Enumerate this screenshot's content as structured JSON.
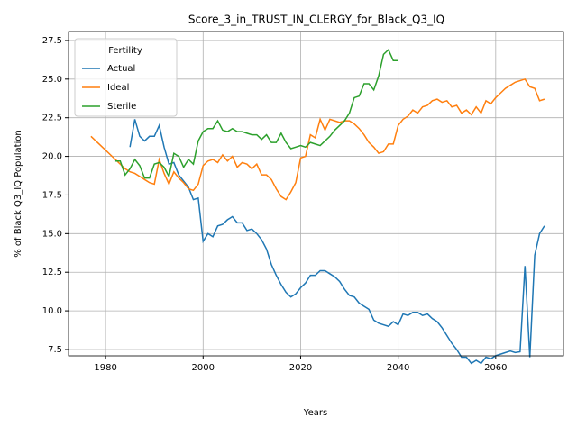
{
  "chart_data": {
    "type": "line",
    "title": "Score_3_in_TRUST_IN_CLERGY_for_Black_Q3_IQ",
    "x_label": "Years",
    "y_label": "% of Black Q3_IQ Population",
    "legend_title": "Fertility",
    "legend": "upper left",
    "grid": true,
    "xlim": [
      1972.4,
      2073.9
    ],
    "ylim": [
      7.09,
      28.08
    ],
    "xticks": [
      1980,
      2000,
      2020,
      2040,
      2060
    ],
    "yticks": [
      7.5,
      {
        "value": 10,
        "label": "10.0"
      },
      12.5,
      {
        "value": 15,
        "label": "15.0"
      },
      17.5,
      {
        "value": 20,
        "label": "20.0"
      },
      22.5,
      {
        "value": 25,
        "label": "25.0"
      },
      27.5
    ],
    "x": [
      1977,
      1978,
      1979,
      1980,
      1981,
      1982,
      1983,
      1984,
      1985,
      1986,
      1987,
      1988,
      1989,
      1990,
      1991,
      1992,
      1993,
      1994,
      1995,
      1996,
      1997,
      1998,
      1999,
      2000,
      2001,
      2002,
      2003,
      2004,
      2005,
      2006,
      2007,
      2008,
      2009,
      2010,
      2011,
      2012,
      2013,
      2014,
      2015,
      2016,
      2017,
      2018,
      2019,
      2020,
      2021,
      2022,
      2023,
      2024,
      2025,
      2026,
      2027,
      2028,
      2029,
      2030,
      2031,
      2032,
      2033,
      2034,
      2035,
      2036,
      2037,
      2038,
      2039,
      2040,
      2041,
      2042,
      2043,
      2044,
      2045,
      2046,
      2047,
      2048,
      2049,
      2050,
      2051,
      2052,
      2053,
      2054,
      2055,
      2056,
      2057,
      2058,
      2059,
      2060,
      2061,
      2062,
      2063,
      2064,
      2065,
      2066,
      2067,
      2068,
      2069,
      2070
    ],
    "series": [
      {
        "name": "Actual",
        "color": "#1f77b4",
        "values": [
          null,
          null,
          null,
          null,
          null,
          null,
          null,
          null,
          20.6,
          22.4,
          21.3,
          21.0,
          21.3,
          21.3,
          22.0,
          20.6,
          19.5,
          19.6,
          18.8,
          18.4,
          18.0,
          17.2,
          17.3,
          14.5,
          15.0,
          14.8,
          15.5,
          15.6,
          15.9,
          16.1,
          15.7,
          15.7,
          15.2,
          15.3,
          15.0,
          14.6,
          14.0,
          13.0,
          12.3,
          11.7,
          11.2,
          10.9,
          11.1,
          11.5,
          11.8,
          12.3,
          12.3,
          12.6,
          12.6,
          12.4,
          12.2,
          11.9,
          11.4,
          11.0,
          10.9,
          10.5,
          10.3,
          10.1,
          9.4,
          9.2,
          9.1,
          9.0,
          9.3,
          9.1,
          9.8,
          9.7,
          9.9,
          9.9,
          9.7,
          9.8,
          9.5,
          9.3,
          8.9,
          8.4,
          7.9,
          7.5,
          7.0,
          7.0,
          6.6,
          6.8,
          6.6,
          7.0,
          6.9,
          7.1,
          7.2,
          7.3,
          7.4,
          7.3,
          7.35,
          12.9,
          7.0,
          13.6,
          15.0,
          15.5
        ]
      },
      {
        "name": "Ideal",
        "color": "#ff7f0e",
        "values": [
          21.3,
          21.0,
          20.7,
          20.4,
          20.1,
          19.8,
          19.5,
          19.2,
          19.0,
          18.9,
          18.7,
          18.5,
          18.3,
          18.2,
          19.8,
          18.9,
          18.2,
          19.0,
          18.6,
          18.3,
          17.9,
          17.8,
          18.2,
          19.4,
          19.7,
          19.8,
          19.6,
          20.1,
          19.7,
          20.0,
          19.3,
          19.6,
          19.5,
          19.2,
          19.5,
          18.8,
          18.8,
          18.5,
          17.9,
          17.4,
          17.2,
          17.7,
          18.3,
          19.9,
          20.0,
          21.4,
          21.2,
          22.4,
          21.7,
          22.4,
          22.3,
          22.2,
          22.3,
          22.3,
          22.1,
          21.8,
          21.4,
          20.9,
          20.6,
          20.2,
          20.3,
          20.8,
          20.8,
          22.0,
          22.4,
          22.6,
          23.0,
          22.8,
          23.2,
          23.3,
          23.6,
          23.7,
          23.5,
          23.6,
          23.2,
          23.3,
          22.8,
          23.0,
          22.7,
          23.2,
          22.8,
          23.6,
          23.4,
          23.8,
          24.1,
          24.4,
          24.6,
          24.8,
          24.9,
          25.0,
          24.5,
          24.4,
          23.6,
          23.7
        ]
      },
      {
        "name": "Sterile",
        "color": "#2ca02c",
        "values": [
          null,
          null,
          null,
          null,
          null,
          19.7,
          19.7,
          18.8,
          19.2,
          19.8,
          19.4,
          18.6,
          18.6,
          19.5,
          19.6,
          19.3,
          18.7,
          20.2,
          20.0,
          19.3,
          19.8,
          19.5,
          21.0,
          21.6,
          21.8,
          21.8,
          22.3,
          21.7,
          21.6,
          21.8,
          21.6,
          21.6,
          21.5,
          21.4,
          21.4,
          21.1,
          21.4,
          20.9,
          20.9,
          21.5,
          20.9,
          20.5,
          20.6,
          20.7,
          20.6,
          20.9,
          20.8,
          20.7,
          21.0,
          21.3,
          21.7,
          22.0,
          22.3,
          22.8,
          23.8,
          23.9,
          24.7,
          24.7,
          24.3,
          25.2,
          26.6,
          26.9,
          26.2,
          26.2,
          null,
          null,
          null,
          null,
          null,
          null,
          null,
          null,
          null,
          null,
          null,
          null,
          null,
          null,
          null,
          null,
          null,
          null,
          null,
          null,
          null,
          null,
          null,
          null,
          null,
          null,
          null,
          null,
          null,
          null
        ]
      }
    ]
  }
}
